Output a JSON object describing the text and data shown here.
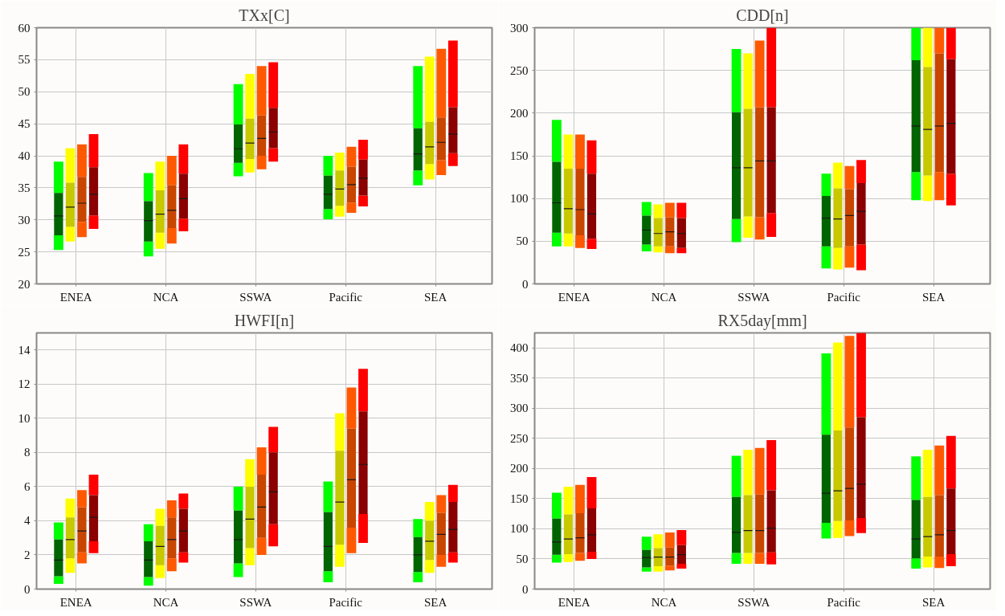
{
  "chart_data": [
    {
      "type": "box",
      "title": "TXx[C]",
      "categories": [
        "ENEA",
        "NCA",
        "SSWA",
        "Pacific",
        "SEA"
      ],
      "ylim": [
        20,
        60
      ],
      "yticks": [
        20,
        25,
        30,
        35,
        40,
        45,
        50,
        55,
        60
      ],
      "grid": true,
      "series": [
        {
          "color": "#006400",
          "boxes": [
            {
              "low": 25.3,
              "q1": 27.6,
              "median": 30.6,
              "q3": 34.2,
              "high": 39.1
            },
            {
              "low": 24.3,
              "q1": 26.6,
              "median": 29.9,
              "q3": 32.9,
              "high": 37.3
            },
            {
              "low": 36.8,
              "q1": 38.9,
              "median": 41.1,
              "q3": 44.9,
              "high": 51.2
            },
            {
              "low": 30.1,
              "q1": 31.7,
              "median": 34.0,
              "q3": 36.9,
              "high": 40.0
            },
            {
              "low": 35.4,
              "q1": 37.7,
              "median": 40.3,
              "q3": 44.3,
              "high": 54.0
            }
          ]
        },
        {
          "color": "#c8c800",
          "boxes": [
            {
              "low": 26.6,
              "q1": 28.9,
              "median": 32.0,
              "q3": 35.8,
              "high": 41.2
            },
            {
              "low": 25.5,
              "q1": 28.0,
              "median": 30.9,
              "q3": 34.6,
              "high": 39.1
            },
            {
              "low": 37.4,
              "q1": 39.5,
              "median": 42.0,
              "q3": 45.8,
              "high": 52.8
            },
            {
              "low": 30.5,
              "q1": 32.2,
              "median": 34.8,
              "q3": 37.7,
              "high": 40.5
            },
            {
              "low": 36.3,
              "q1": 38.7,
              "median": 41.4,
              "q3": 45.3,
              "high": 55.5
            }
          ]
        },
        {
          "color": "#c84600",
          "boxes": [
            {
              "low": 27.3,
              "q1": 29.7,
              "median": 32.6,
              "q3": 36.7,
              "high": 41.8
            },
            {
              "low": 26.3,
              "q1": 28.7,
              "median": 31.5,
              "q3": 35.4,
              "high": 40.0
            },
            {
              "low": 37.9,
              "q1": 40.0,
              "median": 42.7,
              "q3": 46.3,
              "high": 54.0
            },
            {
              "low": 31.1,
              "q1": 32.7,
              "median": 35.5,
              "q3": 38.3,
              "high": 41.4
            },
            {
              "low": 37.0,
              "q1": 39.3,
              "median": 42.1,
              "q3": 46.0,
              "high": 56.7
            }
          ]
        },
        {
          "color": "#8b0000",
          "boxes": [
            {
              "low": 28.6,
              "q1": 30.7,
              "median": 34.0,
              "q3": 38.2,
              "high": 43.4
            },
            {
              "low": 28.2,
              "q1": 30.2,
              "median": 33.3,
              "q3": 37.2,
              "high": 41.8
            },
            {
              "low": 39.1,
              "q1": 41.2,
              "median": 43.7,
              "q3": 47.5,
              "high": 54.6
            },
            {
              "low": 32.1,
              "q1": 33.8,
              "median": 36.5,
              "q3": 39.4,
              "high": 42.5
            },
            {
              "low": 38.4,
              "q1": 40.4,
              "median": 43.4,
              "q3": 47.6,
              "high": 58.0
            }
          ]
        }
      ]
    },
    {
      "type": "box",
      "title": "CDD[n]",
      "categories": [
        "ENEA",
        "NCA",
        "SSWA",
        "Pacific",
        "SEA"
      ],
      "ylim": [
        0,
        300
      ],
      "yticks": [
        0,
        50,
        100,
        150,
        200,
        250,
        300
      ],
      "grid": true,
      "series": [
        {
          "color": "#006400",
          "boxes": [
            {
              "low": 44,
              "q1": 60,
              "median": 95,
              "q3": 143,
              "high": 192
            },
            {
              "low": 38,
              "q1": 46,
              "median": 63,
              "q3": 80,
              "high": 96
            },
            {
              "low": 49,
              "q1": 76,
              "median": 136,
              "q3": 201,
              "high": 275
            },
            {
              "low": 18,
              "q1": 44,
              "median": 77,
              "q3": 103,
              "high": 129
            },
            {
              "low": 98,
              "q1": 131,
              "median": 185,
              "q3": 262,
              "high": 300
            }
          ]
        },
        {
          "color": "#c8c800",
          "boxes": [
            {
              "low": 44,
              "q1": 59,
              "median": 88,
              "q3": 135,
              "high": 175
            },
            {
              "low": 37,
              "q1": 44,
              "median": 59,
              "q3": 77,
              "high": 93
            },
            {
              "low": 54,
              "q1": 79,
              "median": 136,
              "q3": 205,
              "high": 270
            },
            {
              "low": 17,
              "q1": 42,
              "median": 76,
              "q3": 112,
              "high": 142
            },
            {
              "low": 97,
              "q1": 127,
              "median": 181,
              "q3": 254,
              "high": 300
            }
          ]
        },
        {
          "color": "#c84600",
          "boxes": [
            {
              "low": 42,
              "q1": 57,
              "median": 87,
              "q3": 135,
              "high": 175
            },
            {
              "low": 36,
              "q1": 44,
              "median": 61,
              "q3": 78,
              "high": 95
            },
            {
              "low": 52,
              "q1": 78,
              "median": 144,
              "q3": 207,
              "high": 285
            },
            {
              "low": 19,
              "q1": 44,
              "median": 80,
              "q3": 111,
              "high": 138
            },
            {
              "low": 98,
              "q1": 131,
              "median": 185,
              "q3": 270,
              "high": 300
            }
          ]
        },
        {
          "color": "#8b0000",
          "boxes": [
            {
              "low": 41,
              "q1": 53,
              "median": 82,
              "q3": 129,
              "high": 168
            },
            {
              "low": 36,
              "q1": 42,
              "median": 59,
              "q3": 77,
              "high": 95
            },
            {
              "low": 55,
              "q1": 83,
              "median": 144,
              "q3": 207,
              "high": 300
            },
            {
              "low": 16,
              "q1": 46,
              "median": 85,
              "q3": 118,
              "high": 145
            },
            {
              "low": 92,
              "q1": 129,
              "median": 188,
              "q3": 263,
              "high": 300
            }
          ]
        }
      ]
    },
    {
      "type": "box",
      "title": "HWFI[n]",
      "categories": [
        "ENEA",
        "NCA",
        "SSWA",
        "Pacific",
        "SEA"
      ],
      "ylim": [
        0,
        15
      ],
      "yticks": [
        0,
        2,
        4,
        6,
        8,
        10,
        12,
        14
      ],
      "grid": true,
      "series": [
        {
          "color": "#006400",
          "boxes": [
            {
              "low": 0.3,
              "q1": 0.75,
              "median": 1.7,
              "q3": 2.9,
              "high": 3.9
            },
            {
              "low": 0.2,
              "q1": 0.7,
              "median": 1.7,
              "q3": 2.8,
              "high": 3.8
            },
            {
              "low": 0.7,
              "q1": 1.5,
              "median": 2.9,
              "q3": 4.6,
              "high": 6.0
            },
            {
              "low": 0.4,
              "q1": 1.05,
              "median": 2.5,
              "q3": 4.5,
              "high": 6.3
            },
            {
              "low": 0.4,
              "q1": 1.0,
              "median": 2.0,
              "q3": 3.05,
              "high": 4.1
            }
          ]
        },
        {
          "color": "#c8c800",
          "boxes": [
            {
              "low": 0.95,
              "q1": 1.8,
              "median": 2.9,
              "q3": 4.2,
              "high": 5.3
            },
            {
              "low": 0.65,
              "q1": 1.4,
              "median": 2.5,
              "q3": 3.7,
              "high": 4.7
            },
            {
              "low": 1.4,
              "q1": 2.4,
              "median": 4.1,
              "q3": 6.0,
              "high": 7.6
            },
            {
              "low": 1.3,
              "q1": 2.6,
              "median": 5.1,
              "q3": 8.1,
              "high": 10.3
            },
            {
              "low": 0.95,
              "q1": 1.7,
              "median": 2.8,
              "q3": 4.0,
              "high": 5.1
            }
          ]
        },
        {
          "color": "#c84600",
          "boxes": [
            {
              "low": 1.5,
              "q1": 2.15,
              "median": 3.4,
              "q3": 4.8,
              "high": 5.8
            },
            {
              "low": 1.05,
              "q1": 1.8,
              "median": 2.9,
              "q3": 4.2,
              "high": 5.2
            },
            {
              "low": 2.0,
              "q1": 3.0,
              "median": 4.8,
              "q3": 6.7,
              "high": 8.3
            },
            {
              "low": 2.1,
              "q1": 3.6,
              "median": 6.4,
              "q3": 9.4,
              "high": 11.8
            },
            {
              "low": 1.3,
              "q1": 2.0,
              "median": 3.2,
              "q3": 4.45,
              "high": 5.5
            }
          ]
        },
        {
          "color": "#8b0000",
          "boxes": [
            {
              "low": 2.1,
              "q1": 2.8,
              "median": 4.2,
              "q3": 5.5,
              "high": 6.7
            },
            {
              "low": 1.55,
              "q1": 2.15,
              "median": 3.4,
              "q3": 4.7,
              "high": 5.6
            },
            {
              "low": 2.5,
              "q1": 3.8,
              "median": 5.7,
              "q3": 8.0,
              "high": 9.5
            },
            {
              "low": 2.7,
              "q1": 4.4,
              "median": 7.3,
              "q3": 10.4,
              "high": 12.9
            },
            {
              "low": 1.55,
              "q1": 2.15,
              "median": 3.5,
              "q3": 5.1,
              "high": 6.1
            }
          ]
        }
      ]
    },
    {
      "type": "box",
      "title": "RX5day[mm]",
      "categories": [
        "ENEA",
        "NCA",
        "SSWA",
        "Pacific",
        "SEA"
      ],
      "ylim": [
        0,
        425
      ],
      "yticks": [
        0,
        50,
        100,
        150,
        200,
        250,
        300,
        350,
        400
      ],
      "grid": true,
      "series": [
        {
          "color": "#006400",
          "boxes": [
            {
              "low": 44,
              "q1": 57,
              "median": 78,
              "q3": 117,
              "high": 160
            },
            {
              "low": 29,
              "q1": 36,
              "median": 52,
              "q3": 65,
              "high": 87
            },
            {
              "low": 42,
              "q1": 60,
              "median": 94,
              "q3": 153,
              "high": 221
            },
            {
              "low": 84,
              "q1": 110,
              "median": 159,
              "q3": 256,
              "high": 391
            },
            {
              "low": 34,
              "q1": 51,
              "median": 83,
              "q3": 148,
              "high": 220
            }
          ]
        },
        {
          "color": "#c8c800",
          "boxes": [
            {
              "low": 45,
              "q1": 58,
              "median": 83,
              "q3": 124,
              "high": 170
            },
            {
              "low": 29,
              "q1": 38,
              "median": 53,
              "q3": 68,
              "high": 91
            },
            {
              "low": 42,
              "q1": 60,
              "median": 97,
              "q3": 156,
              "high": 231
            },
            {
              "low": 85,
              "q1": 113,
              "median": 163,
              "q3": 263,
              "high": 409
            },
            {
              "low": 36,
              "q1": 54,
              "median": 87,
              "q3": 153,
              "high": 231
            }
          ]
        },
        {
          "color": "#c84600",
          "boxes": [
            {
              "low": 47,
              "q1": 60,
              "median": 85,
              "q3": 126,
              "high": 173
            },
            {
              "low": 31,
              "q1": 39,
              "median": 53,
              "q3": 69,
              "high": 94
            },
            {
              "low": 42,
              "q1": 60,
              "median": 97,
              "q3": 157,
              "high": 234
            },
            {
              "low": 88,
              "q1": 114,
              "median": 167,
              "q3": 268,
              "high": 420
            },
            {
              "low": 35,
              "q1": 54,
              "median": 90,
              "q3": 156,
              "high": 238
            }
          ]
        },
        {
          "color": "#8b0000",
          "boxes": [
            {
              "low": 50,
              "q1": 62,
              "median": 90,
              "q3": 134,
              "high": 186
            },
            {
              "low": 34,
              "q1": 42,
              "median": 57,
              "q3": 73,
              "high": 98
            },
            {
              "low": 41,
              "q1": 61,
              "median": 101,
              "q3": 164,
              "high": 247
            },
            {
              "low": 93,
              "q1": 118,
              "median": 174,
              "q3": 285,
              "high": 425
            },
            {
              "low": 38,
              "q1": 58,
              "median": 97,
              "q3": 167,
              "high": 254
            }
          ]
        }
      ]
    }
  ]
}
